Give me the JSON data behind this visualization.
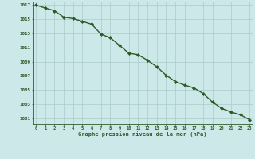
{
  "x": [
    0,
    1,
    2,
    3,
    4,
    5,
    6,
    7,
    8,
    9,
    10,
    11,
    12,
    13,
    14,
    15,
    16,
    17,
    18,
    19,
    20,
    21,
    22,
    23
  ],
  "y": [
    1017.0,
    1016.6,
    1016.2,
    1015.3,
    1015.1,
    1014.7,
    1014.3,
    1012.9,
    1012.4,
    1011.3,
    1010.2,
    1010.0,
    1009.2,
    1008.3,
    1007.1,
    1006.2,
    1005.7,
    1005.3,
    1004.5,
    1003.3,
    1002.4,
    1001.9,
    1001.5,
    1000.8
  ],
  "line_color": "#2d5a27",
  "marker": "D",
  "marker_size": 2.0,
  "background_color": "#cce8e8",
  "grid_color": "#aacccc",
  "xlabel": "Graphe pression niveau de la mer (hPa)",
  "xlabel_color": "#2d5a27",
  "ytick_labels": [
    1001,
    1003,
    1005,
    1007,
    1009,
    1011,
    1013,
    1015,
    1017
  ],
  "xtick_labels": [
    0,
    1,
    2,
    3,
    4,
    5,
    6,
    7,
    8,
    9,
    10,
    11,
    12,
    13,
    14,
    15,
    16,
    17,
    18,
    19,
    20,
    21,
    22,
    23
  ],
  "ylim": [
    1000.2,
    1017.5
  ],
  "xlim": [
    -0.3,
    23.3
  ],
  "tick_color": "#2d5a27",
  "spine_color": "#2d5a27",
  "line_width": 1.0,
  "fig_width": 3.2,
  "fig_height": 2.0,
  "dpi": 100
}
